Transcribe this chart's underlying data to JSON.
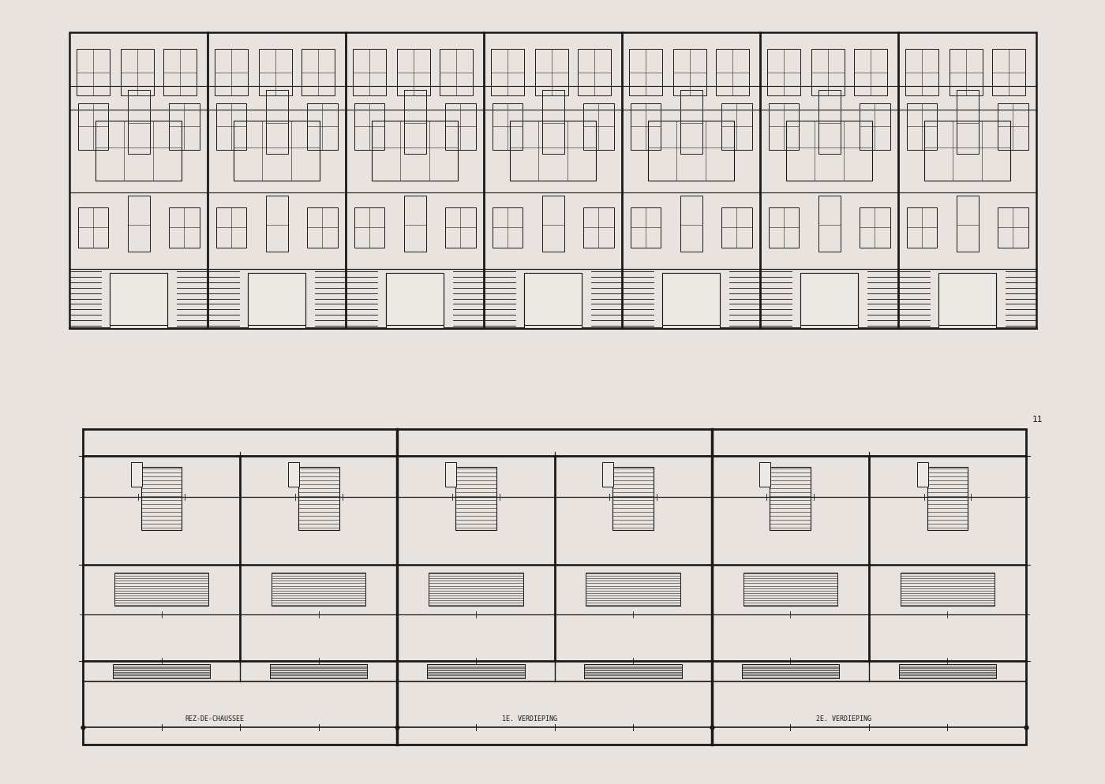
{
  "bg_color": "#e8e3de",
  "paper_color": "#ece8e3",
  "line_color": "#1a1818",
  "num_units": 7,
  "labels": [
    "REZ-DE-CHAUSSEE",
    "1E. VERDIEPING",
    "2E. VERDIEPING"
  ],
  "note": "11"
}
